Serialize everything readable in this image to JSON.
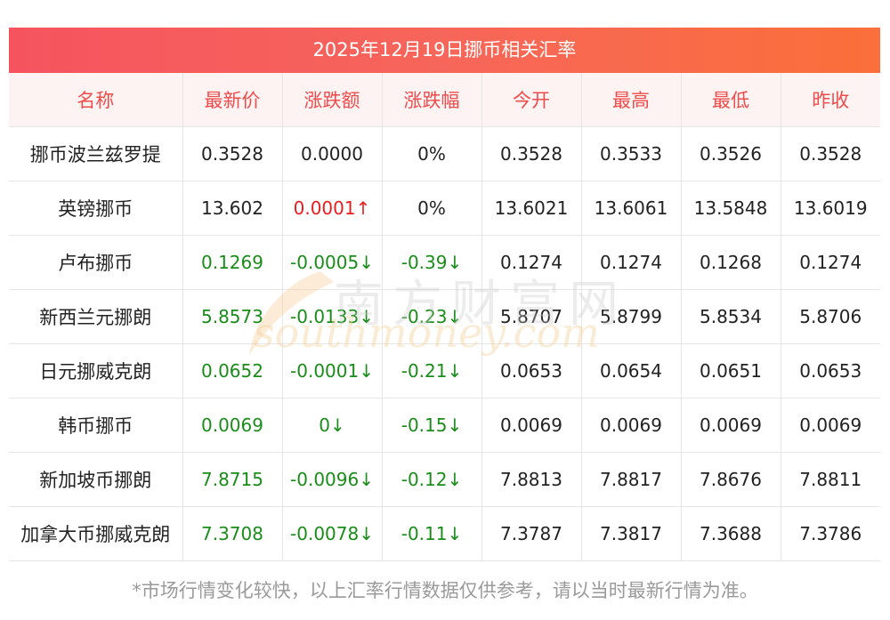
{
  "title": "2025年12月19日挪币相关汇率",
  "columns": [
    "名称",
    "最新价",
    "涨跌额",
    "涨跌幅",
    "今开",
    "最高",
    "最低",
    "昨收"
  ],
  "rows": [
    {
      "name": "挪币波兰兹罗提",
      "latest": "0.3528",
      "change": "0.0000",
      "pct": "0%",
      "open": "0.3528",
      "high": "0.3533",
      "low": "0.3526",
      "prev": "0.3528",
      "trend_latest": "flat",
      "trend_change": "flat",
      "trend_pct": "flat"
    },
    {
      "name": "英镑挪币",
      "latest": "13.602",
      "change": "0.0001↑",
      "pct": "0%",
      "open": "13.6021",
      "high": "13.6061",
      "low": "13.5848",
      "prev": "13.6019",
      "trend_latest": "flat",
      "trend_change": "up",
      "trend_pct": "flat"
    },
    {
      "name": "卢布挪币",
      "latest": "0.1269",
      "change": "-0.0005↓",
      "pct": "-0.39↓",
      "open": "0.1274",
      "high": "0.1274",
      "low": "0.1268",
      "prev": "0.1274",
      "trend_latest": "down",
      "trend_change": "down",
      "trend_pct": "down"
    },
    {
      "name": "新西兰元挪朗",
      "latest": "5.8573",
      "change": "-0.0133↓",
      "pct": "-0.23↓",
      "open": "5.8707",
      "high": "5.8799",
      "low": "5.8534",
      "prev": "5.8706",
      "trend_latest": "down",
      "trend_change": "down",
      "trend_pct": "down"
    },
    {
      "name": "日元挪威克朗",
      "latest": "0.0652",
      "change": "-0.0001↓",
      "pct": "-0.21↓",
      "open": "0.0653",
      "high": "0.0654",
      "low": "0.0651",
      "prev": "0.0653",
      "trend_latest": "down",
      "trend_change": "down",
      "trend_pct": "down"
    },
    {
      "name": "韩币挪币",
      "latest": "0.0069",
      "change": "0↓",
      "pct": "-0.15↓",
      "open": "0.0069",
      "high": "0.0069",
      "low": "0.0069",
      "prev": "0.0069",
      "trend_latest": "down",
      "trend_change": "down",
      "trend_pct": "down"
    },
    {
      "name": "新加坡币挪朗",
      "latest": "7.8715",
      "change": "-0.0096↓",
      "pct": "-0.12↓",
      "open": "7.8813",
      "high": "7.8817",
      "low": "7.8676",
      "prev": "7.8811",
      "trend_latest": "down",
      "trend_change": "down",
      "trend_pct": "down"
    },
    {
      "name": "加拿大币挪威克朗",
      "latest": "7.3708",
      "change": "-0.0078↓",
      "pct": "-0.11↓",
      "open": "7.3787",
      "high": "7.3817",
      "low": "7.3688",
      "prev": "7.3786",
      "trend_latest": "down",
      "trend_change": "down",
      "trend_pct": "down"
    }
  ],
  "note": "*市场行情变化较快，以上汇率行情数据仅供参考，请以当时最新行情为准。",
  "watermark": {
    "cn": "南方财富网",
    "en": "southmoney.com"
  },
  "colors": {
    "header_gradient_start": "#f5545f",
    "header_gradient_end": "#fa6f3a",
    "header_text": "#ee4b4b",
    "up": "#e81e1e",
    "down": "#1a8c1a"
  }
}
